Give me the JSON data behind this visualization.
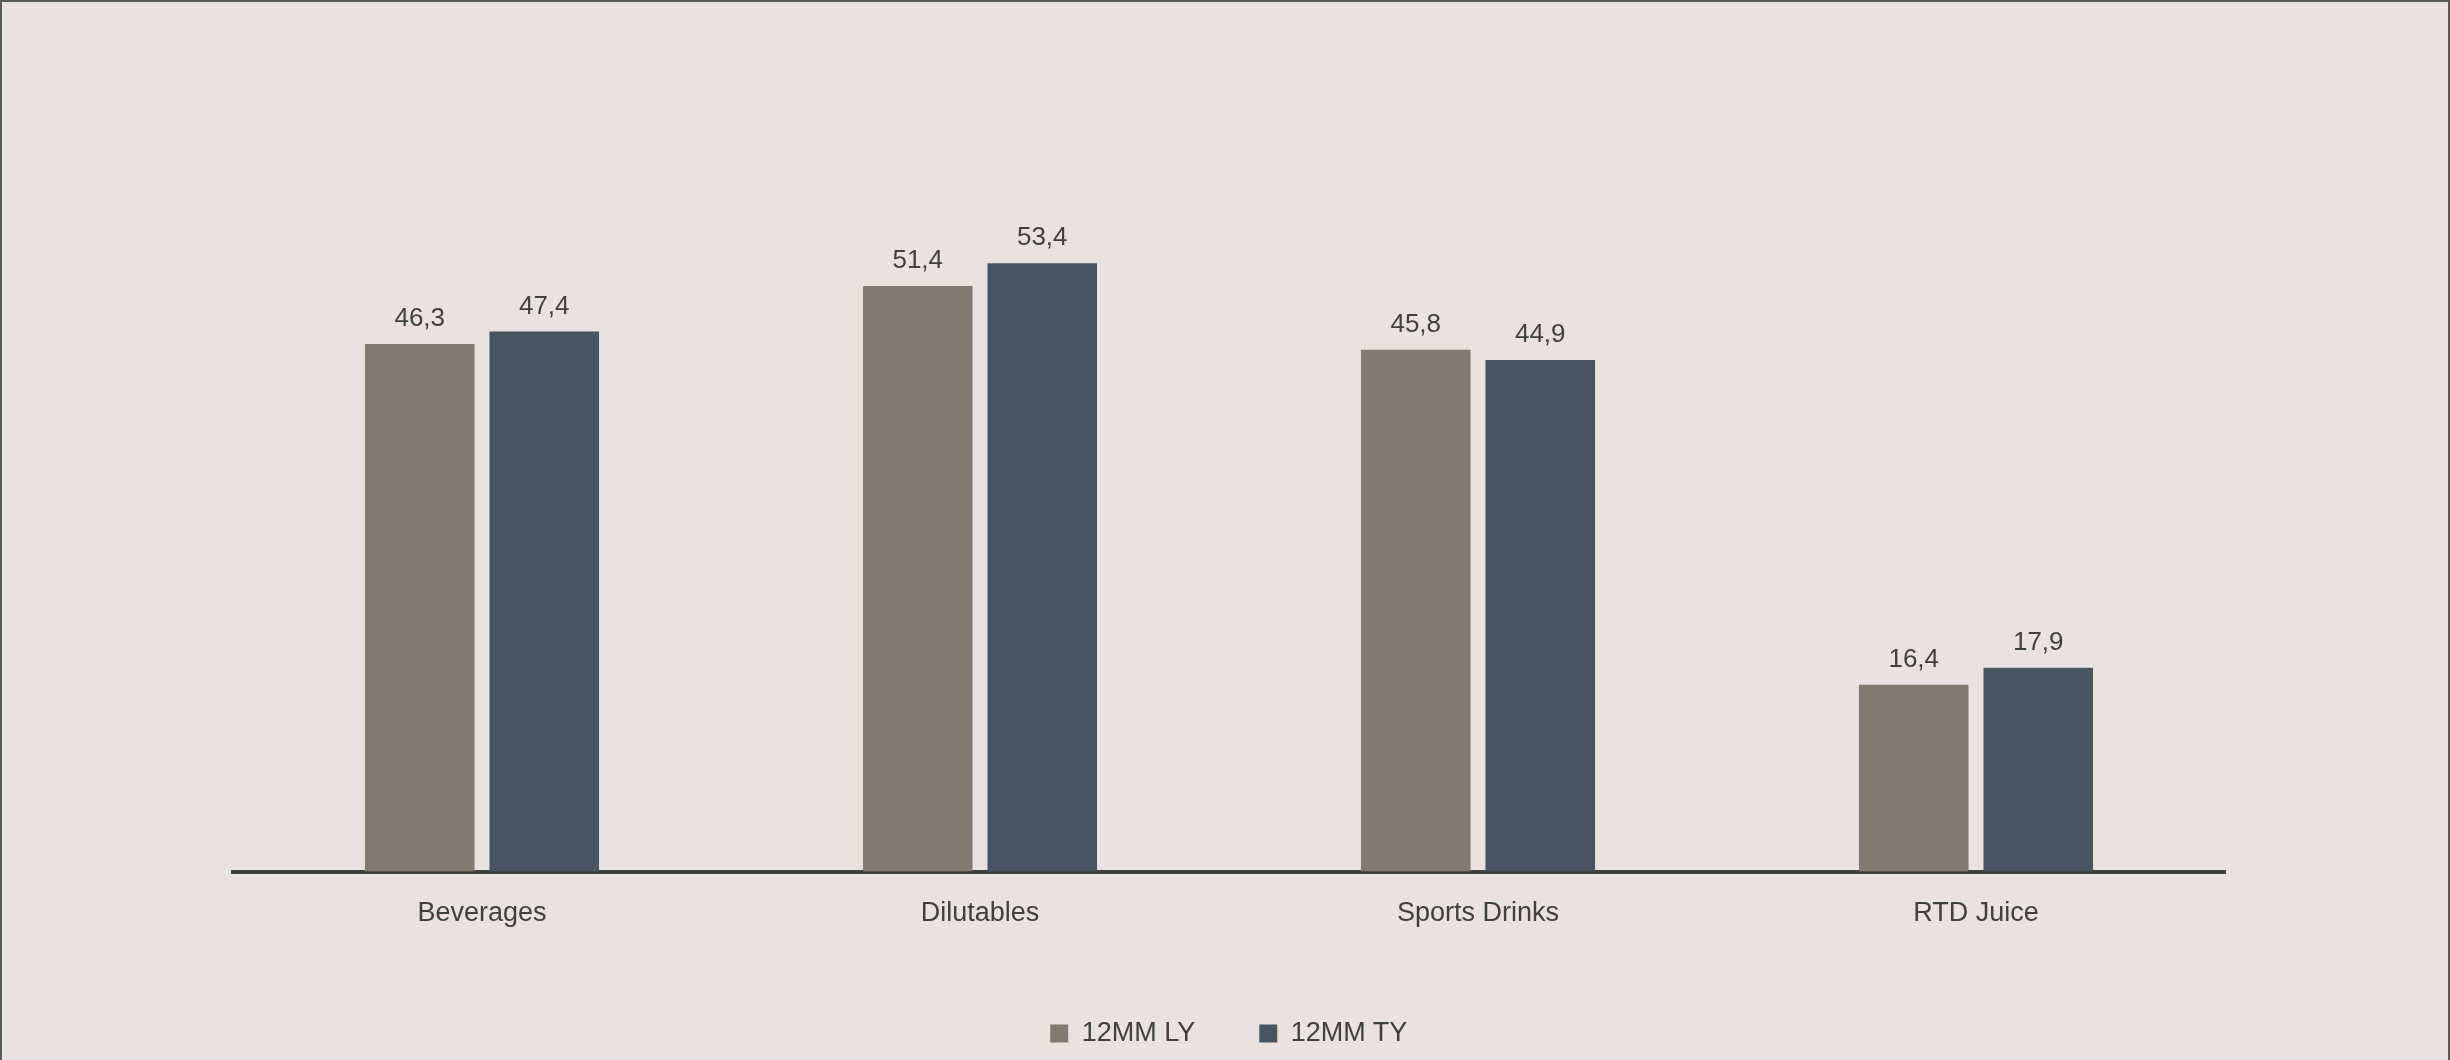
{
  "chart_data": {
    "type": "bar",
    "categories": [
      "Beverages",
      "Dilutables",
      "Sports Drinks",
      "RTD Juice"
    ],
    "series": [
      {
        "name": "12MM LY",
        "color": "#847970",
        "values": [
          46.3,
          51.4,
          45.8,
          16.4
        ],
        "value_labels": [
          "46,3",
          "51,4",
          "45,8",
          "16,4"
        ]
      },
      {
        "name": "12MM TY",
        "color": "#475461",
        "values": [
          47.4,
          53.4,
          44.9,
          17.9
        ],
        "value_labels": [
          "47,4",
          "53,4",
          "44,9",
          "17,9"
        ]
      }
    ],
    "legend": "bottom"
  }
}
